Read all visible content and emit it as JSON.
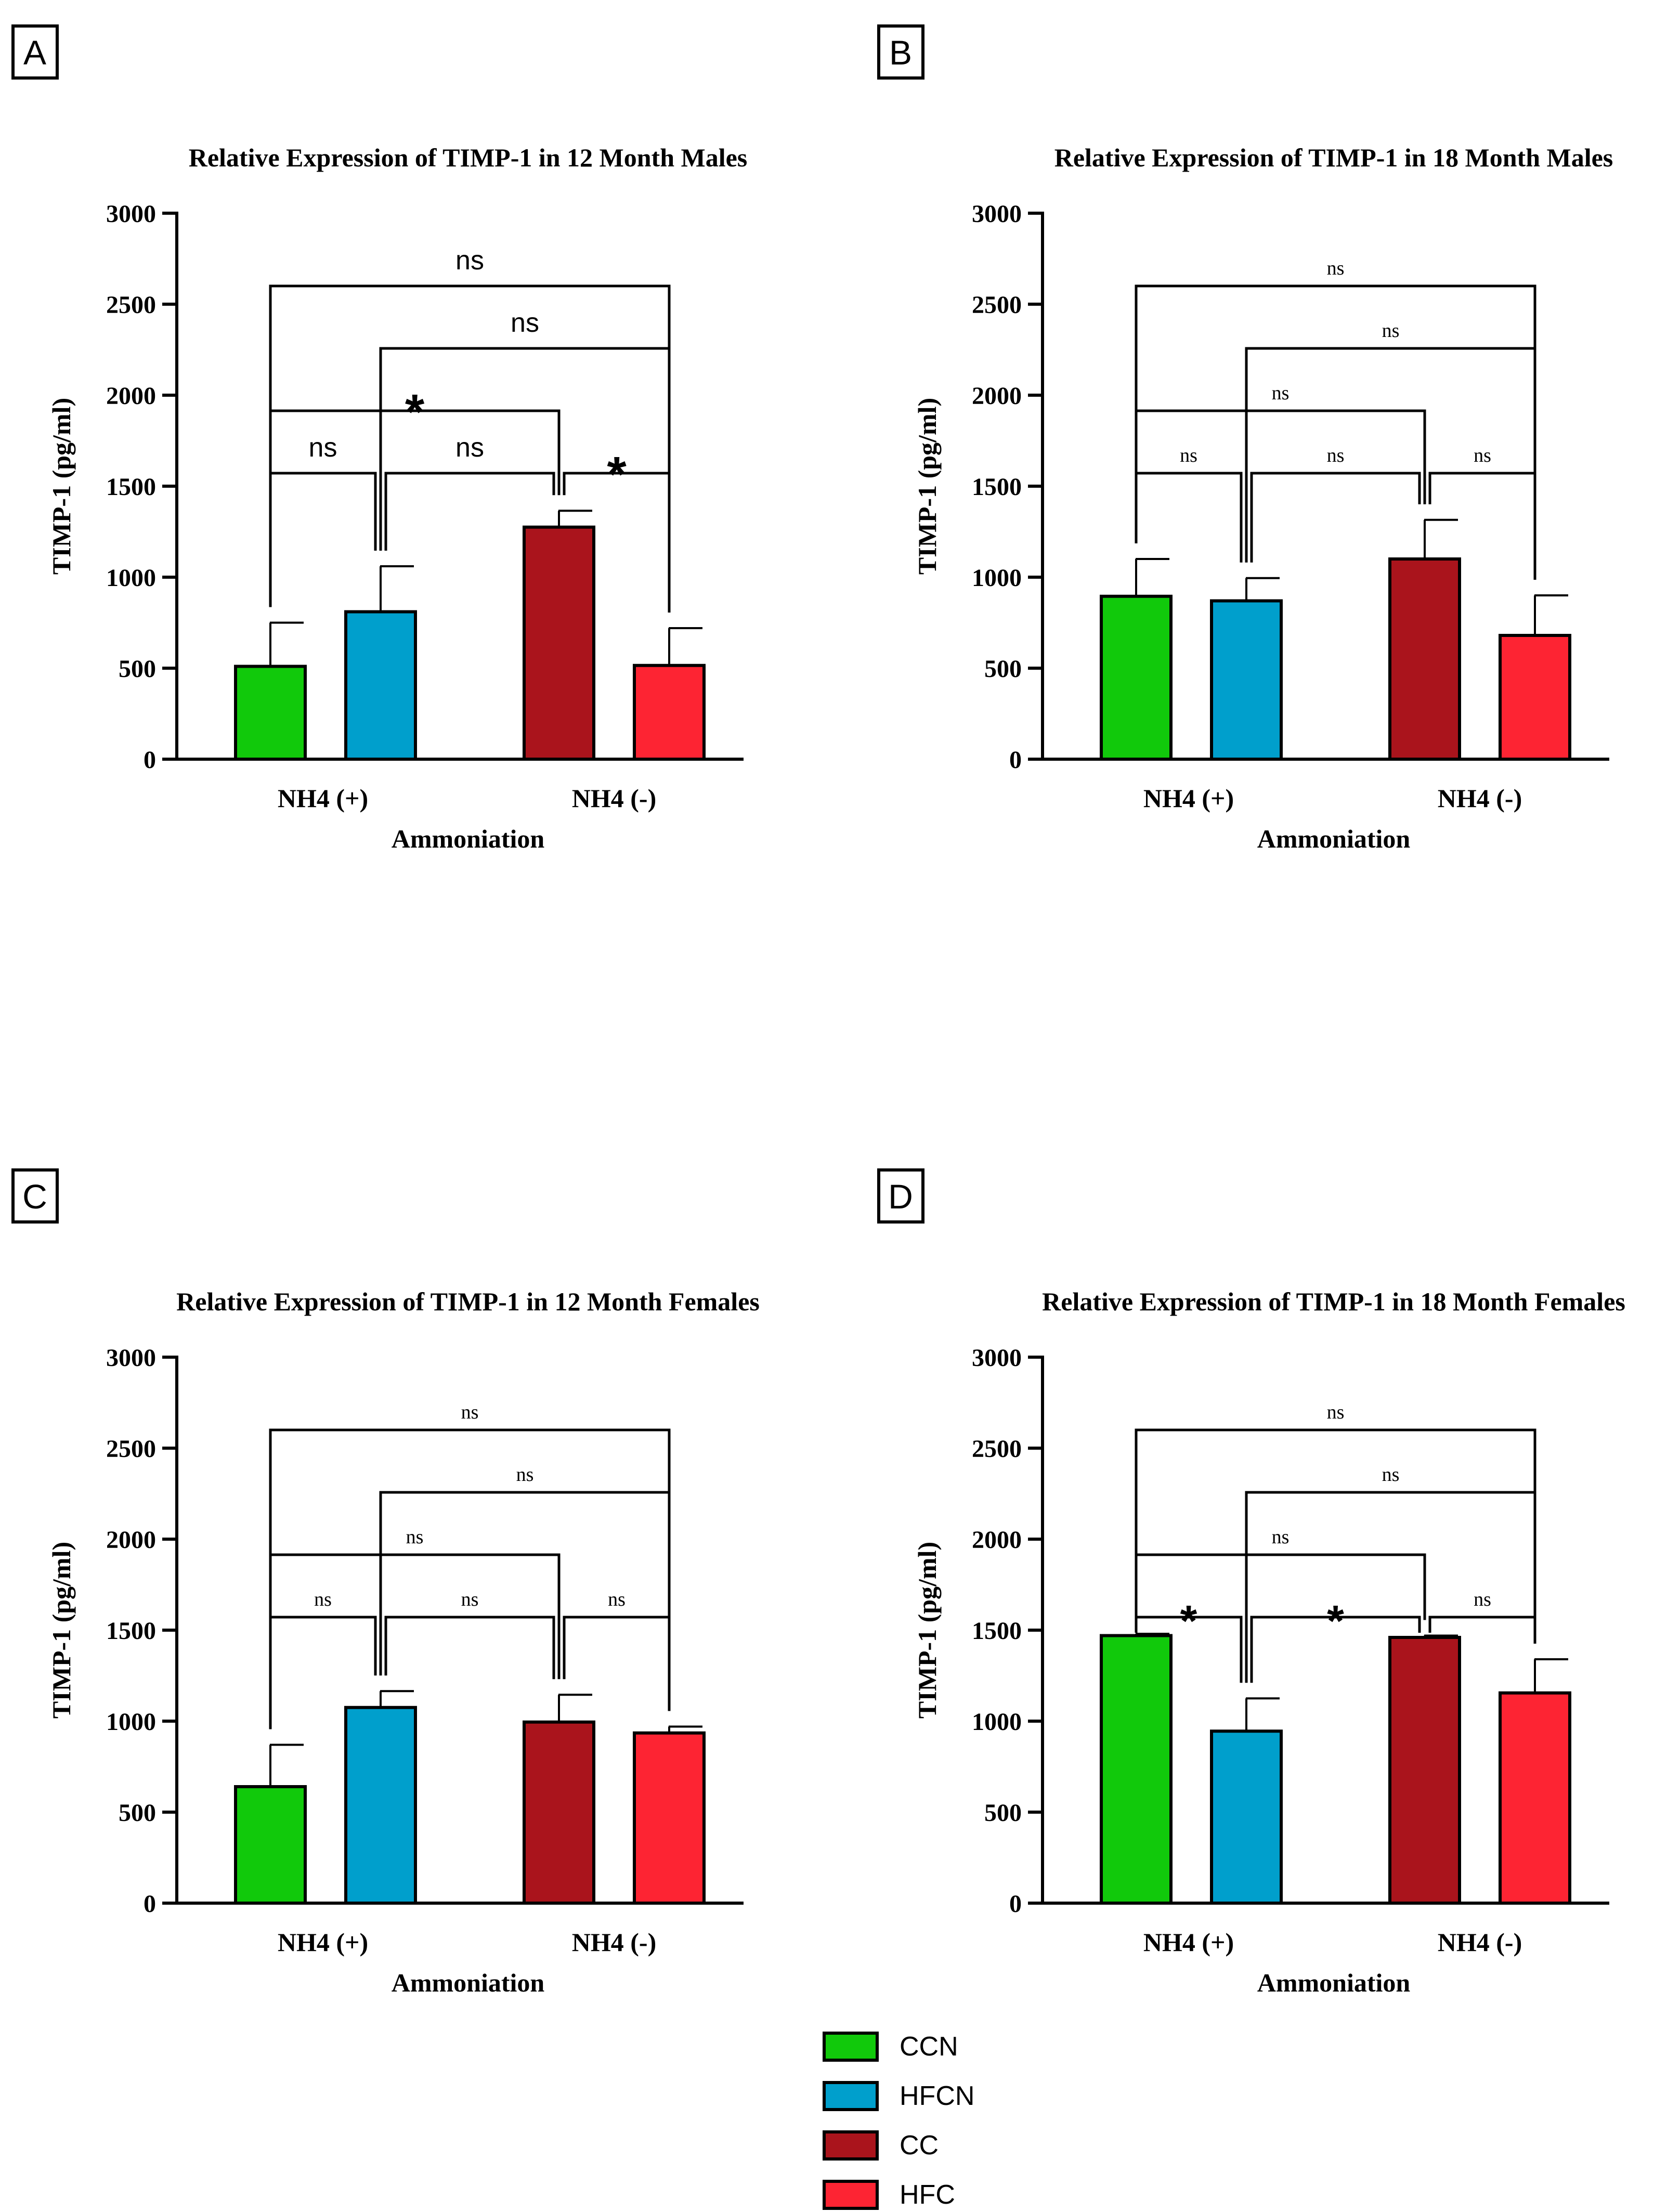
{
  "legend": [
    {
      "name": "CCN",
      "color": "#11c90b"
    },
    {
      "name": "HFCN",
      "color": "#009fcc"
    },
    {
      "name": "CC",
      "color": "#aa141c"
    },
    {
      "name": "HFC",
      "color": "#fd2433"
    }
  ],
  "chart_data": [
    {
      "panel": "A",
      "type": "bar",
      "title": "Relative Expression of TIMP-1 in 12 Month Males",
      "xlabel": "Ammoniation",
      "ylabel": "TIMP-1 (pg/ml)",
      "ylim": [
        0,
        3000
      ],
      "yticks": [
        0,
        500,
        1000,
        1500,
        2000,
        2500,
        3000
      ],
      "categories": [
        "NH4 (+)",
        "NH4 (-)"
      ],
      "series": [
        {
          "name": "CCN",
          "values": [
            510,
            null
          ],
          "errors": [
            240,
            null
          ]
        },
        {
          "name": "HFCN",
          "values": [
            810,
            null
          ],
          "errors": [
            250,
            null
          ]
        },
        {
          "name": "CC",
          "values": [
            null,
            1275
          ],
          "errors": [
            null,
            90
          ]
        },
        {
          "name": "HFC",
          "values": [
            null,
            515
          ],
          "errors": [
            null,
            205
          ]
        }
      ],
      "comparisons": [
        {
          "groups": [
            "CCN",
            "HFC"
          ],
          "label": "ns"
        },
        {
          "groups": [
            "HFCN",
            "HFC"
          ],
          "label": "ns"
        },
        {
          "groups": [
            "CCN",
            "CC"
          ],
          "label": "*"
        },
        {
          "groups": [
            "CCN",
            "HFCN"
          ],
          "label": "ns"
        },
        {
          "groups": [
            "HFCN",
            "CC"
          ],
          "label": "ns"
        },
        {
          "groups": [
            "CC",
            "HFC"
          ],
          "label": "*"
        }
      ]
    },
    {
      "panel": "B",
      "type": "bar",
      "title": "Relative Expression of TIMP-1 in 18 Month Males",
      "xlabel": "Ammoniation",
      "ylabel": "TIMP-1 (pg/ml)",
      "ylim": [
        0,
        3000
      ],
      "yticks": [
        0,
        500,
        1000,
        1500,
        2000,
        2500,
        3000
      ],
      "categories": [
        "NH4 (+)",
        "NH4 (-)"
      ],
      "series": [
        {
          "name": "CCN",
          "values": [
            895,
            null
          ],
          "errors": [
            205,
            null
          ]
        },
        {
          "name": "HFCN",
          "values": [
            870,
            null
          ],
          "errors": [
            125,
            null
          ]
        },
        {
          "name": "CC",
          "values": [
            null,
            1100
          ],
          "errors": [
            null,
            215
          ]
        },
        {
          "name": "HFC",
          "values": [
            null,
            680
          ],
          "errors": [
            null,
            220
          ]
        }
      ],
      "comparisons": [
        {
          "groups": [
            "CCN",
            "HFC"
          ],
          "label": "ns"
        },
        {
          "groups": [
            "HFCN",
            "HFC"
          ],
          "label": "ns"
        },
        {
          "groups": [
            "CCN",
            "CC"
          ],
          "label": "ns"
        },
        {
          "groups": [
            "CCN",
            "HFCN"
          ],
          "label": "ns"
        },
        {
          "groups": [
            "HFCN",
            "CC"
          ],
          "label": "ns"
        },
        {
          "groups": [
            "CC",
            "HFC"
          ],
          "label": "ns"
        }
      ]
    },
    {
      "panel": "C",
      "type": "bar",
      "title": "Relative Expression of TIMP-1 in 12 Month Females",
      "xlabel": "Ammoniation",
      "ylabel": "TIMP-1 (pg/ml)",
      "ylim": [
        0,
        3000
      ],
      "yticks": [
        0,
        500,
        1000,
        1500,
        2000,
        2500,
        3000
      ],
      "categories": [
        "NH4 (+)",
        "NH4 (-)"
      ],
      "series": [
        {
          "name": "CCN",
          "values": [
            640,
            null
          ],
          "errors": [
            230,
            null
          ]
        },
        {
          "name": "HFCN",
          "values": [
            1075,
            null
          ],
          "errors": [
            90,
            null
          ]
        },
        {
          "name": "CC",
          "values": [
            null,
            995
          ],
          "errors": [
            null,
            150
          ]
        },
        {
          "name": "HFC",
          "values": [
            null,
            935
          ],
          "errors": [
            null,
            35
          ]
        }
      ],
      "comparisons": [
        {
          "groups": [
            "CCN",
            "HFC"
          ],
          "label": "ns"
        },
        {
          "groups": [
            "HFCN",
            "HFC"
          ],
          "label": "ns"
        },
        {
          "groups": [
            "CCN",
            "CC"
          ],
          "label": "ns"
        },
        {
          "groups": [
            "CCN",
            "HFCN"
          ],
          "label": "ns"
        },
        {
          "groups": [
            "HFCN",
            "CC"
          ],
          "label": "ns"
        },
        {
          "groups": [
            "CC",
            "HFC"
          ],
          "label": "ns"
        }
      ]
    },
    {
      "panel": "D",
      "type": "bar",
      "title": "Relative Expression of TIMP-1 in 18 Month Females",
      "xlabel": "Ammoniation",
      "ylabel": "TIMP-1 (pg/ml)",
      "ylim": [
        0,
        3000
      ],
      "yticks": [
        0,
        500,
        1000,
        1500,
        2000,
        2500,
        3000
      ],
      "categories": [
        "NH4 (+)",
        "NH4 (-)"
      ],
      "series": [
        {
          "name": "CCN",
          "values": [
            1470,
            null
          ],
          "errors": [
            10,
            null
          ]
        },
        {
          "name": "HFCN",
          "values": [
            945,
            null
          ],
          "errors": [
            180,
            null
          ]
        },
        {
          "name": "CC",
          "values": [
            null,
            1460
          ],
          "errors": [
            null,
            10
          ]
        },
        {
          "name": "HFC",
          "values": [
            null,
            1155
          ],
          "errors": [
            null,
            185
          ]
        }
      ],
      "comparisons": [
        {
          "groups": [
            "CCN",
            "HFC"
          ],
          "label": "ns"
        },
        {
          "groups": [
            "HFCN",
            "HFC"
          ],
          "label": "ns"
        },
        {
          "groups": [
            "CCN",
            "CC"
          ],
          "label": "ns"
        },
        {
          "groups": [
            "CCN",
            "HFCN"
          ],
          "label": "*"
        },
        {
          "groups": [
            "HFCN",
            "CC"
          ],
          "label": "*"
        },
        {
          "groups": [
            "CC",
            "HFC"
          ],
          "label": "ns"
        }
      ]
    }
  ]
}
